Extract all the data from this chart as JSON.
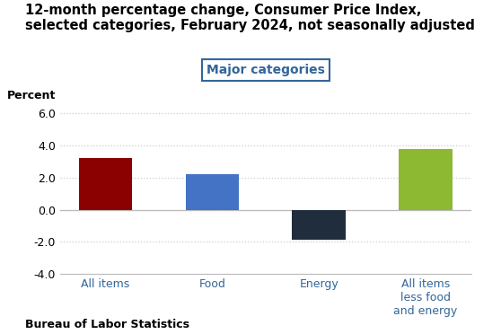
{
  "title_line1": "12-month percentage change, Consumer Price Index,",
  "title_line2": "selected categories, February 2024, not seasonally adjusted",
  "ylabel": "Percent",
  "legend_label": "Major categories",
  "categories": [
    "All items",
    "Food",
    "Energy",
    "All items\nless food\nand energy"
  ],
  "values": [
    3.2,
    2.2,
    -1.9,
    3.8
  ],
  "bar_colors": [
    "#8B0000",
    "#4472C4",
    "#1F2D3D",
    "#8DB832"
  ],
  "ylim": [
    -4.0,
    6.4
  ],
  "yticks": [
    -4.0,
    -2.0,
    0.0,
    2.0,
    4.0,
    6.0
  ],
  "ytick_labels": [
    "-4.0",
    "-2.0",
    "0.0",
    "2.0",
    "4.0",
    "6.0"
  ],
  "footer": "Bureau of Labor Statistics",
  "background_color": "#FFFFFF",
  "plot_bg_color": "#FFFFFF",
  "grid_color": "#CCCCCC",
  "title_fontsize": 10.5,
  "ylabel_fontsize": 9,
  "tick_fontsize": 9,
  "legend_fontsize": 10,
  "footer_fontsize": 9,
  "xtick_color": "#336699",
  "legend_text_color": "#336699",
  "legend_edge_color": "#336699"
}
